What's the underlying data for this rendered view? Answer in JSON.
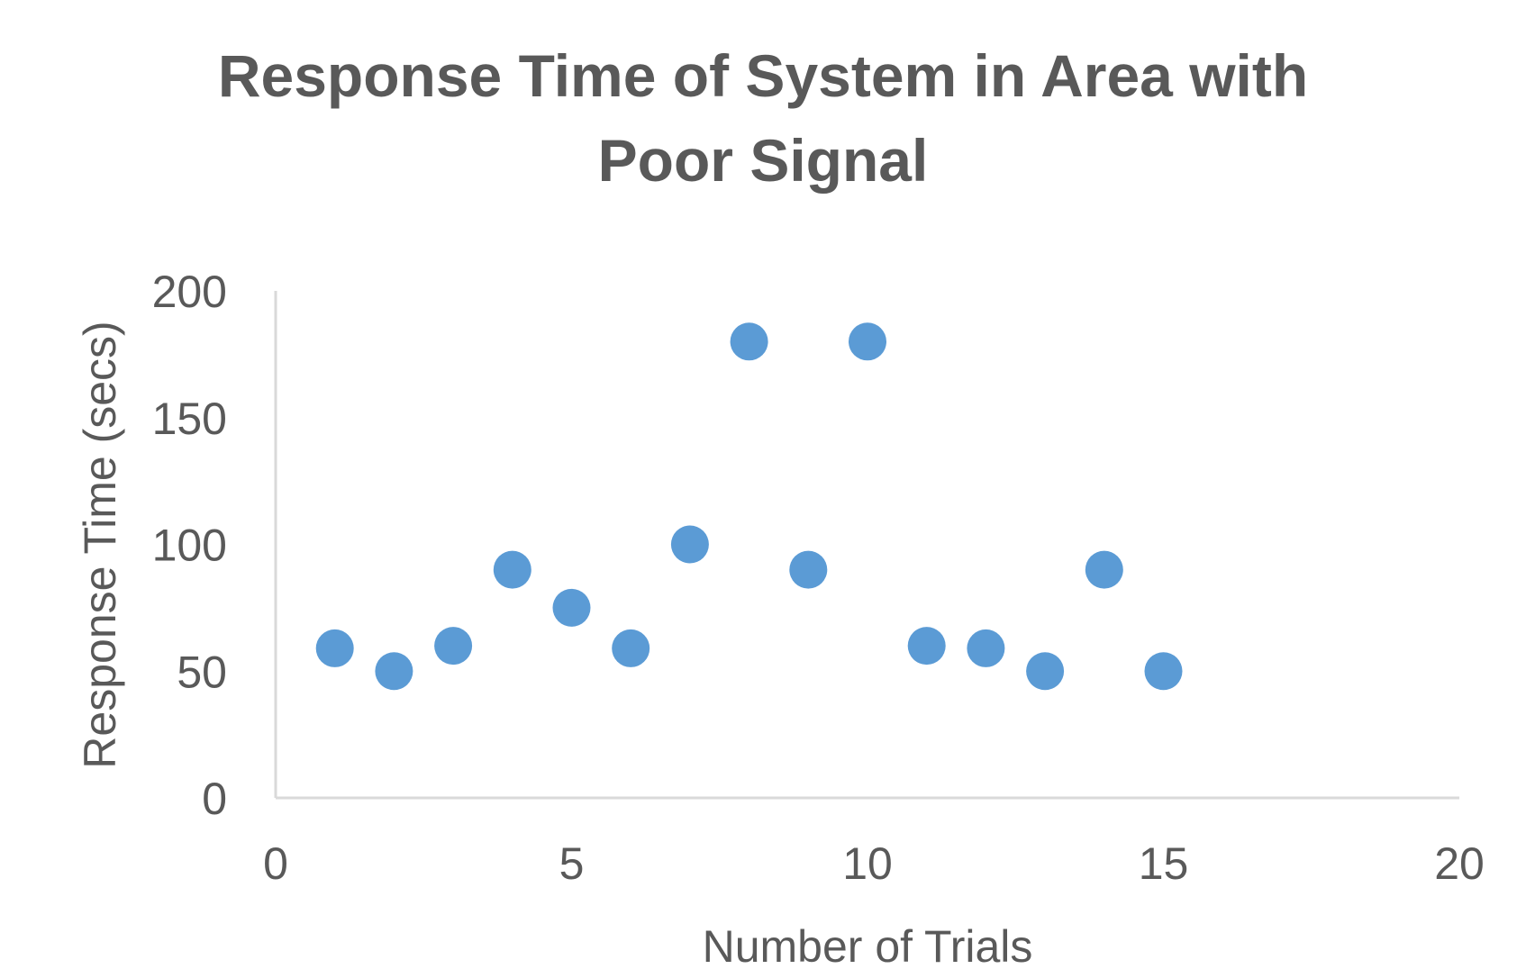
{
  "chart_data": {
    "type": "scatter",
    "title": [
      "Response Time of System in Area with",
      "Poor Signal"
    ],
    "xlabel": "Number of Trials",
    "ylabel": "Response Time (secs)",
    "xlim": [
      0,
      20
    ],
    "ylim": [
      0,
      200
    ],
    "x_ticks": [
      0,
      5,
      10,
      15,
      20
    ],
    "y_ticks": [
      0,
      50,
      100,
      150,
      200
    ],
    "grid": false,
    "legend": "none",
    "marker_color": "#5B9BD5",
    "axis_color": "#D9D9D9",
    "text_color": "#595959",
    "series": [
      {
        "x": [
          1,
          2,
          3,
          4,
          5,
          6,
          7,
          8,
          9,
          10,
          11,
          12,
          13,
          14,
          15
        ],
        "y": [
          59,
          50,
          60,
          90,
          75,
          59,
          100,
          180,
          90,
          180,
          60,
          59,
          50,
          90,
          50
        ]
      }
    ]
  }
}
